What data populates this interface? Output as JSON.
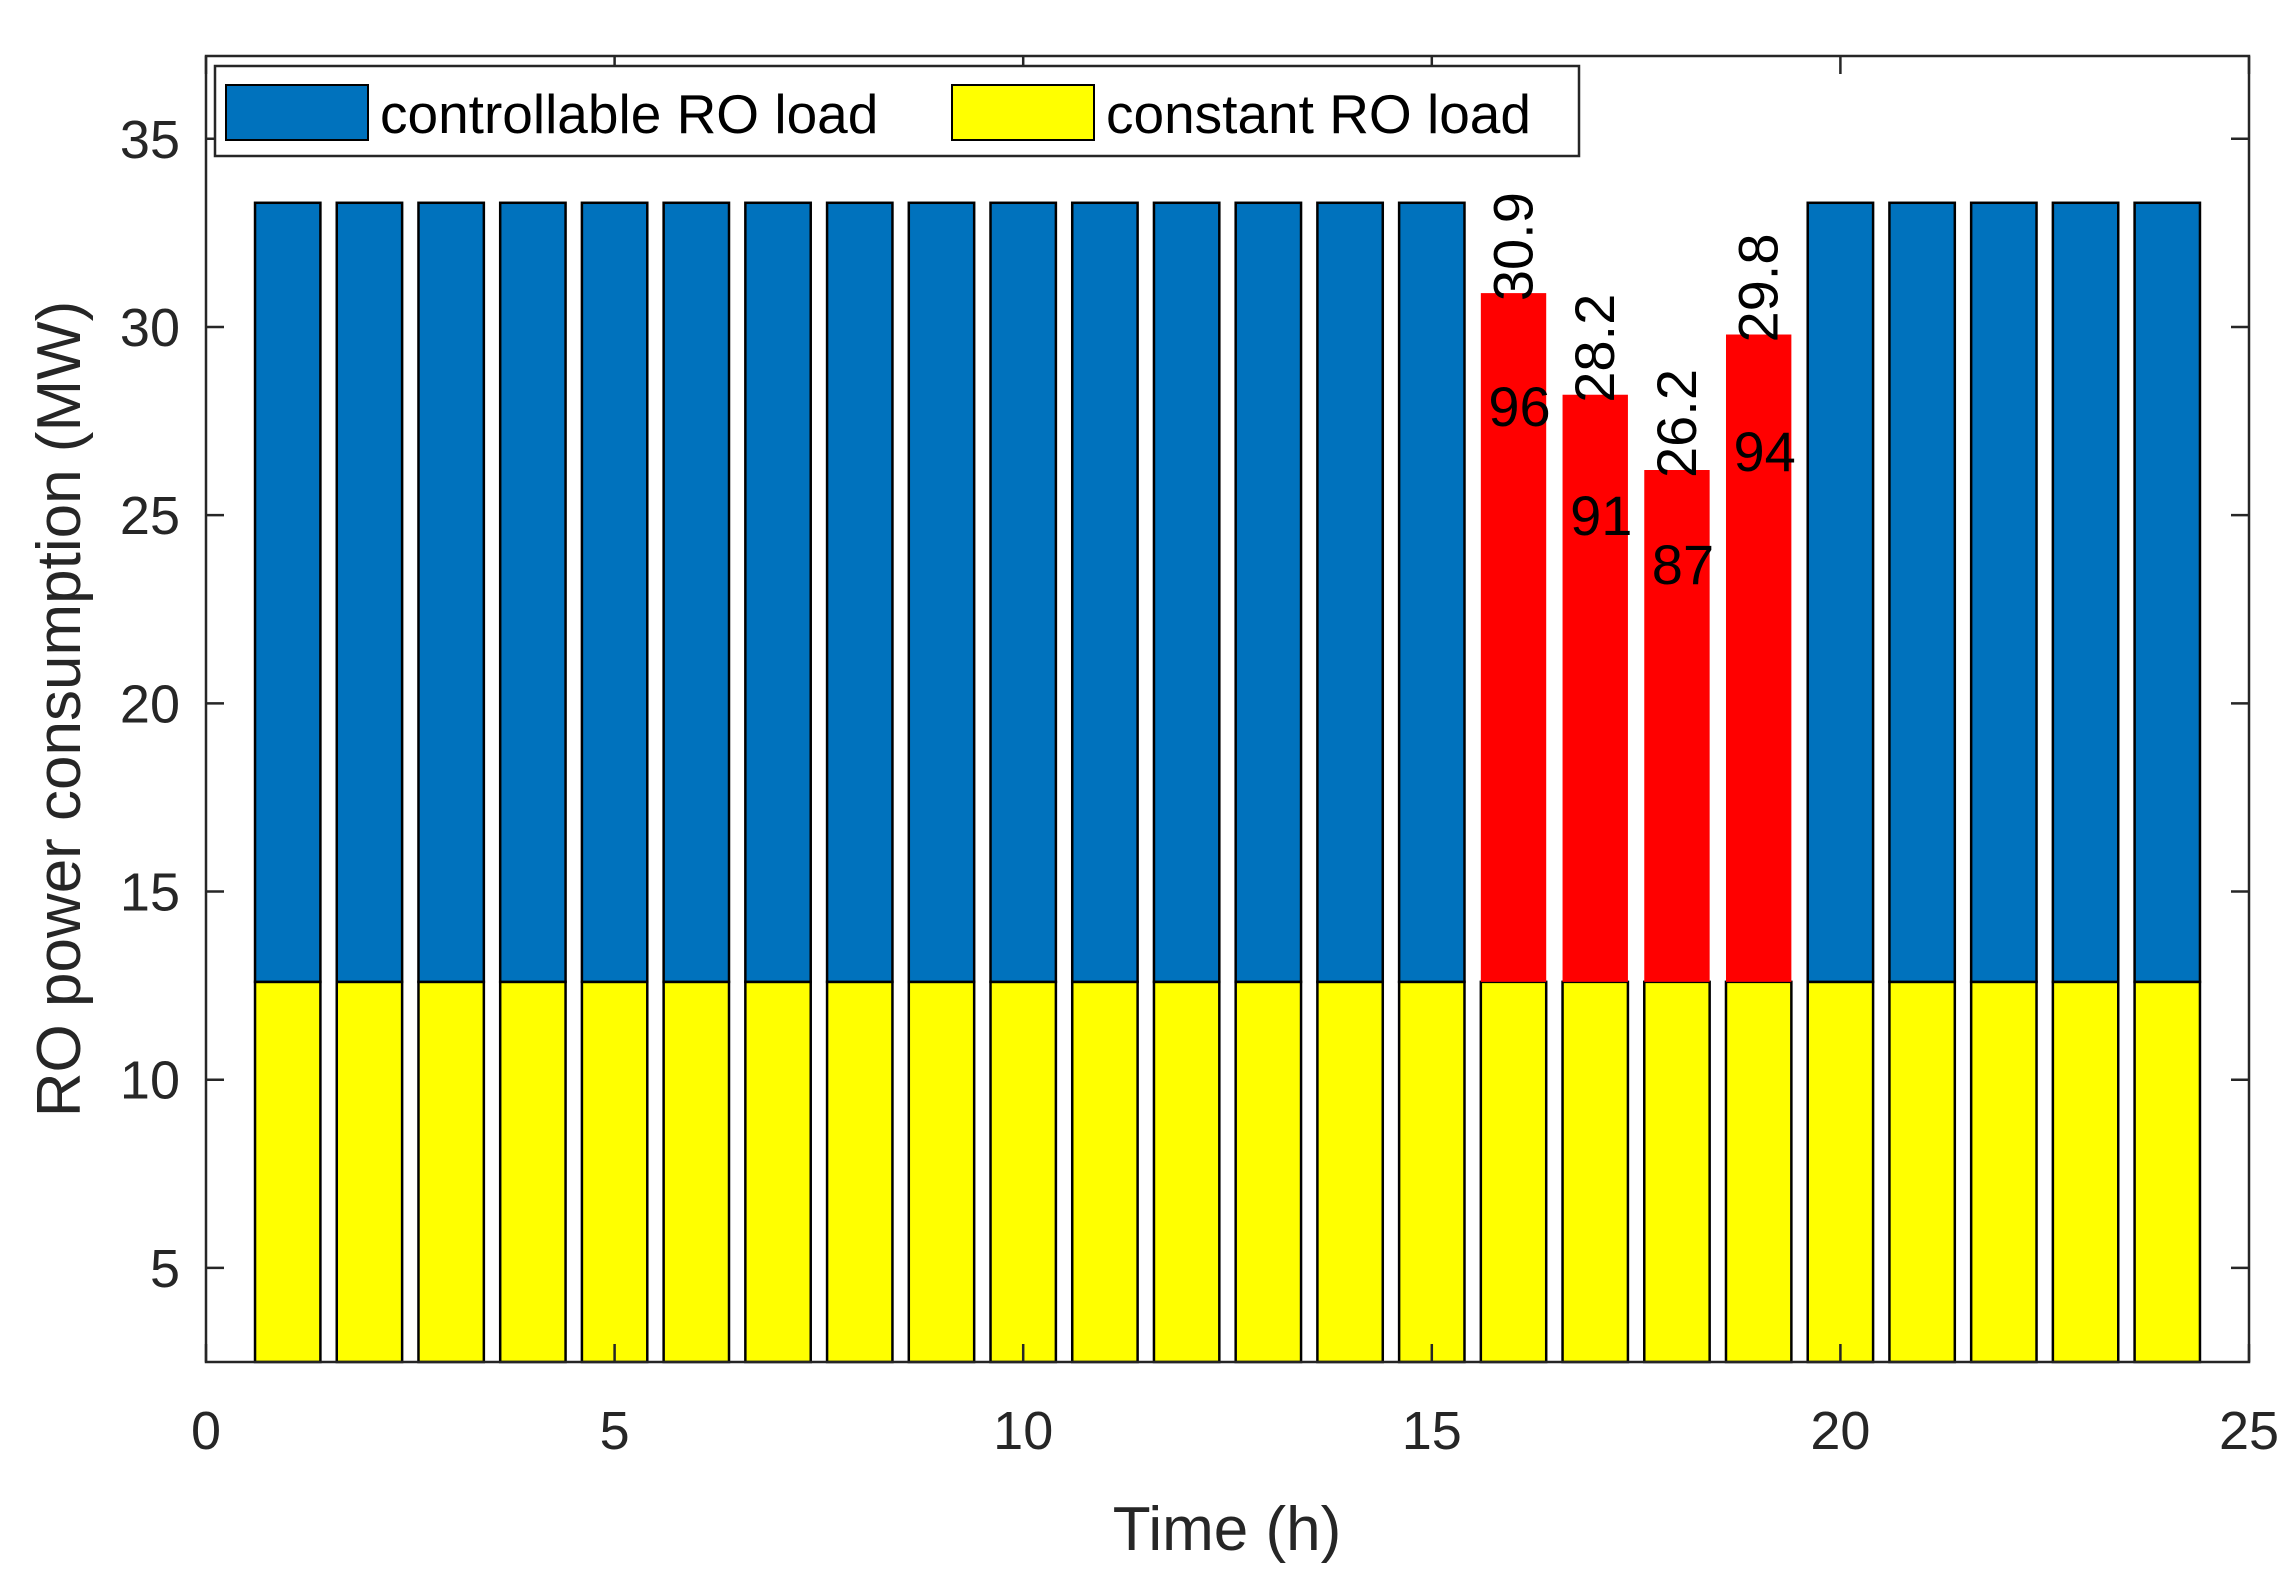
{
  "chart_data": {
    "type": "bar",
    "stacked": true,
    "title": "",
    "xlabel": "Time (h)",
    "ylabel": "RO power consumption (MW)",
    "xlim": [
      0,
      25
    ],
    "ylim": [
      2.5,
      37.2
    ],
    "xticks": [
      0,
      5,
      10,
      15,
      20,
      25
    ],
    "yticks": [
      5,
      10,
      15,
      20,
      25,
      30,
      35
    ],
    "x": [
      1,
      2,
      3,
      4,
      5,
      6,
      7,
      8,
      9,
      10,
      11,
      12,
      13,
      14,
      15,
      16,
      17,
      18,
      19,
      20,
      21,
      22,
      23,
      24
    ],
    "bar_width": 0.8,
    "series": [
      {
        "name": "constant RO load",
        "color": "#FFFF00",
        "values": [
          12.6,
          12.6,
          12.6,
          12.6,
          12.6,
          12.6,
          12.6,
          12.6,
          12.6,
          12.6,
          12.6,
          12.6,
          12.6,
          12.6,
          12.6,
          12.6,
          12.6,
          12.6,
          12.6,
          12.6,
          12.6,
          12.6,
          12.6,
          12.6
        ]
      },
      {
        "name": "controllable RO load",
        "color": "#0072BD",
        "values": [
          20.7,
          20.7,
          20.7,
          20.7,
          20.7,
          20.7,
          20.7,
          20.7,
          20.7,
          20.7,
          20.7,
          20.7,
          20.7,
          20.7,
          20.7,
          18.3,
          15.6,
          13.6,
          17.2,
          20.7,
          20.7,
          20.7,
          20.7,
          20.7
        ]
      }
    ],
    "highlight": {
      "color": "#FF0000",
      "hours": [
        16,
        17,
        18,
        19
      ],
      "totals": [
        "30.9",
        "28.2",
        "26.2",
        "29.8"
      ],
      "percent_labels": [
        "96",
        "91",
        "87",
        "94"
      ],
      "percent_label_values": [
        27.9,
        25.0,
        23.7,
        26.7
      ]
    },
    "legend": {
      "position": "top-left",
      "orientation": "horizontal",
      "entries": [
        {
          "label": "controllable RO load",
          "color": "#0072BD"
        },
        {
          "label": "constant RO load",
          "color": "#FFFF00"
        }
      ]
    },
    "grid": false
  }
}
